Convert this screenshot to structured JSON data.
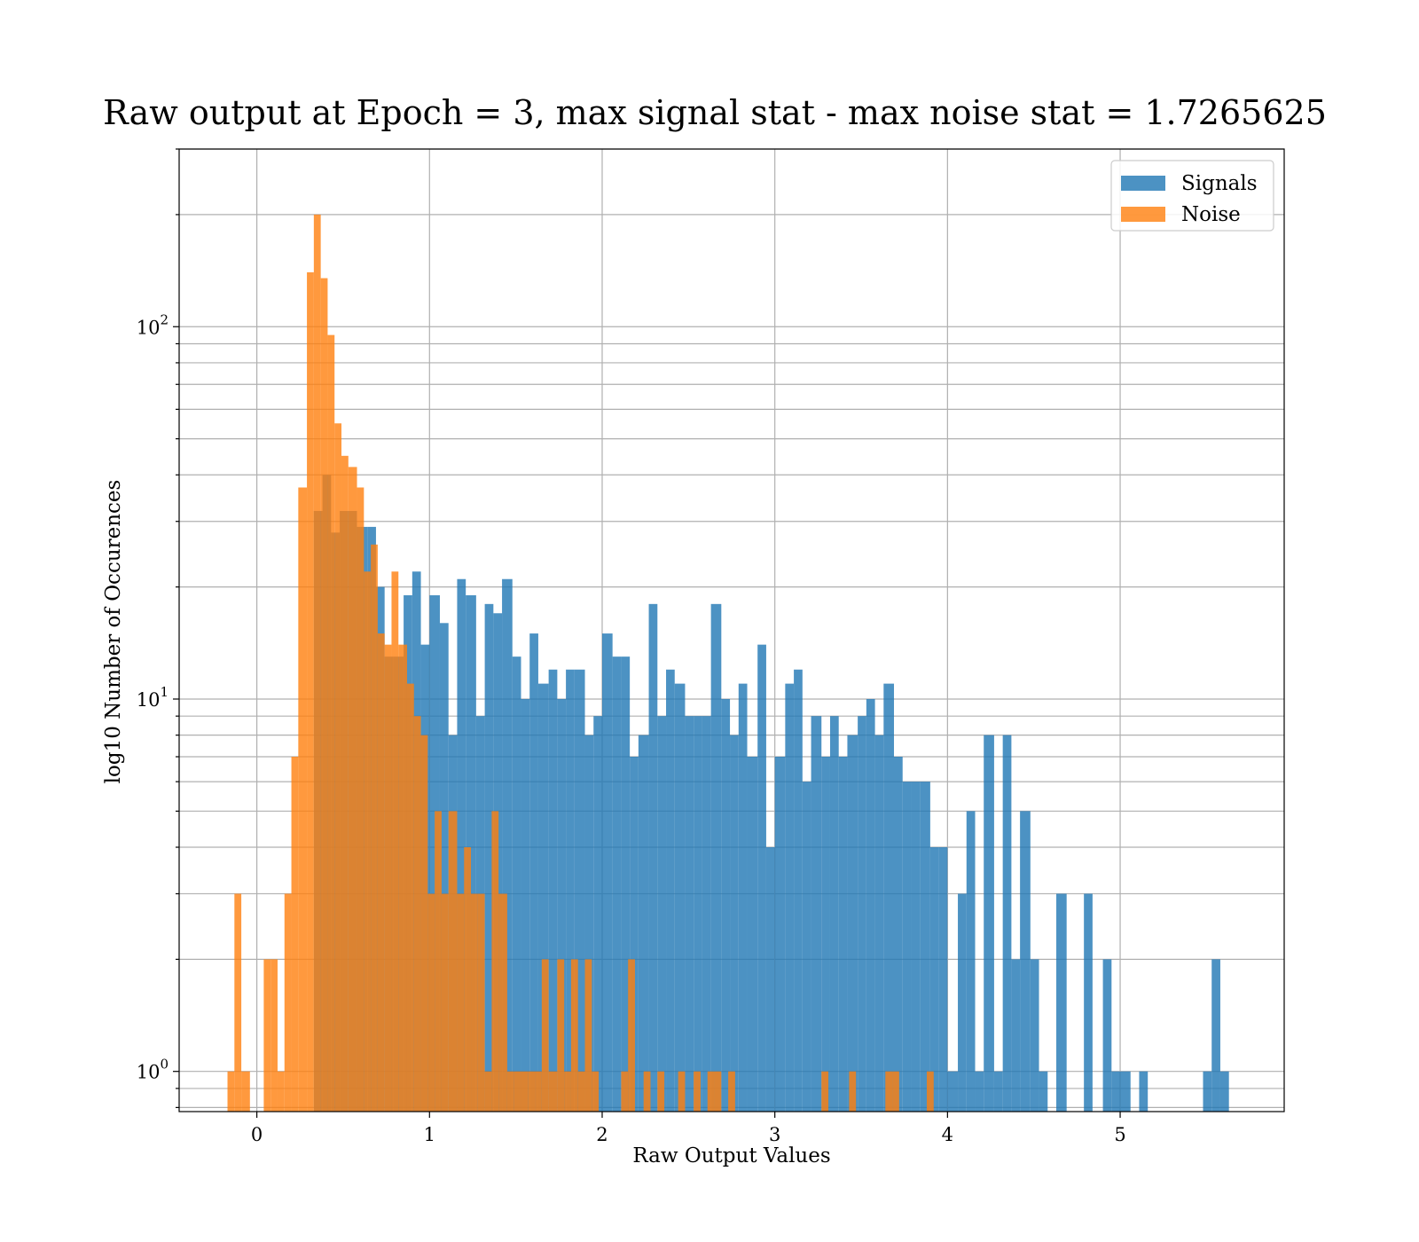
{
  "chart_data": {
    "type": "bar",
    "title": "Raw output at Epoch = 3, max signal stat - max noise stat = 1.7265625",
    "xlabel": "Raw Output Values",
    "ylabel": "log10 Number of Occurences",
    "xlim": [
      -0.45,
      5.95
    ],
    "ylim": [
      0.78,
      300
    ],
    "yscale": "log",
    "x_ticks": [
      {
        "value": 0,
        "label": "0"
      },
      {
        "value": 1,
        "label": "1"
      },
      {
        "value": 2,
        "label": "2"
      },
      {
        "value": 3,
        "label": "3"
      },
      {
        "value": 4,
        "label": "4"
      },
      {
        "value": 5,
        "label": "5"
      }
    ],
    "y_ticks": [
      {
        "value": 1,
        "base": "10",
        "exp": "0"
      },
      {
        "value": 10,
        "base": "10",
        "exp": "1"
      },
      {
        "value": 100,
        "base": "10",
        "exp": "2"
      }
    ],
    "grid": true,
    "legend_position": "top-right",
    "colors": {
      "signals": "#1f77b4",
      "noise": "#ff7f0e",
      "grid": "#b0b0b0"
    },
    "series": [
      {
        "name": "Signals",
        "color": "#1f77b4",
        "bins": [
          [
            0.33,
            0.38,
            32
          ],
          [
            0.38,
            0.43,
            40
          ],
          [
            0.43,
            0.48,
            28
          ],
          [
            0.48,
            0.53,
            32
          ],
          [
            0.53,
            0.58,
            32
          ],
          [
            0.58,
            0.64,
            29
          ],
          [
            0.64,
            0.69,
            29
          ],
          [
            0.69,
            0.74,
            20
          ],
          [
            0.74,
            0.79,
            13
          ],
          [
            0.79,
            0.85,
            13
          ],
          [
            0.85,
            0.9,
            19
          ],
          [
            0.9,
            0.95,
            22
          ],
          [
            0.95,
            1.0,
            14
          ],
          [
            1.0,
            1.06,
            19
          ],
          [
            1.06,
            1.11,
            16
          ],
          [
            1.11,
            1.16,
            8
          ],
          [
            1.16,
            1.21,
            21
          ],
          [
            1.21,
            1.27,
            19
          ],
          [
            1.27,
            1.32,
            9
          ],
          [
            1.32,
            1.37,
            18
          ],
          [
            1.37,
            1.42,
            17
          ],
          [
            1.42,
            1.48,
            21
          ],
          [
            1.48,
            1.53,
            13
          ],
          [
            1.53,
            1.58,
            10
          ],
          [
            1.58,
            1.63,
            15
          ],
          [
            1.63,
            1.69,
            11
          ],
          [
            1.69,
            1.74,
            12
          ],
          [
            1.74,
            1.79,
            10
          ],
          [
            1.79,
            1.84,
            12
          ],
          [
            1.84,
            1.9,
            12
          ],
          [
            1.9,
            1.95,
            8
          ],
          [
            1.95,
            2.0,
            9
          ],
          [
            2.0,
            2.06,
            15
          ],
          [
            2.06,
            2.11,
            13
          ],
          [
            2.11,
            2.16,
            13
          ],
          [
            2.16,
            2.21,
            7
          ],
          [
            2.21,
            2.27,
            8
          ],
          [
            2.27,
            2.32,
            18
          ],
          [
            2.32,
            2.37,
            9
          ],
          [
            2.37,
            2.42,
            12
          ],
          [
            2.42,
            2.48,
            11
          ],
          [
            2.48,
            2.53,
            9
          ],
          [
            2.53,
            2.58,
            9
          ],
          [
            2.58,
            2.63,
            9
          ],
          [
            2.63,
            2.69,
            18
          ],
          [
            2.69,
            2.74,
            10
          ],
          [
            2.74,
            2.79,
            8
          ],
          [
            2.79,
            2.84,
            11
          ],
          [
            2.84,
            2.9,
            7
          ],
          [
            2.9,
            2.95,
            14
          ],
          [
            2.95,
            3.0,
            4
          ],
          [
            3.0,
            3.06,
            7
          ],
          [
            3.06,
            3.11,
            11
          ],
          [
            3.11,
            3.16,
            12
          ],
          [
            3.16,
            3.21,
            6
          ],
          [
            3.21,
            3.27,
            9
          ],
          [
            3.27,
            3.32,
            7
          ],
          [
            3.32,
            3.37,
            9
          ],
          [
            3.37,
            3.42,
            7
          ],
          [
            3.42,
            3.48,
            8
          ],
          [
            3.48,
            3.53,
            9
          ],
          [
            3.53,
            3.58,
            10
          ],
          [
            3.58,
            3.63,
            8
          ],
          [
            3.63,
            3.69,
            11
          ],
          [
            3.69,
            3.74,
            7
          ],
          [
            3.74,
            3.79,
            6
          ],
          [
            3.79,
            3.84,
            6
          ],
          [
            3.84,
            3.9,
            6
          ],
          [
            3.9,
            3.95,
            4
          ],
          [
            3.95,
            4.0,
            4
          ],
          [
            4.0,
            4.06,
            1
          ],
          [
            4.06,
            4.11,
            3
          ],
          [
            4.11,
            4.16,
            5
          ],
          [
            4.16,
            4.21,
            1
          ],
          [
            4.21,
            4.27,
            8
          ],
          [
            4.27,
            4.32,
            1
          ],
          [
            4.32,
            4.37,
            8
          ],
          [
            4.37,
            4.42,
            2
          ],
          [
            4.42,
            4.48,
            5
          ],
          [
            4.48,
            4.53,
            2
          ],
          [
            4.53,
            4.58,
            1
          ],
          [
            4.63,
            4.69,
            3
          ],
          [
            4.79,
            4.84,
            3
          ],
          [
            4.9,
            4.95,
            2
          ],
          [
            4.95,
            5.0,
            1
          ],
          [
            5.0,
            5.06,
            1
          ],
          [
            5.11,
            5.16,
            1
          ],
          [
            5.48,
            5.53,
            1
          ],
          [
            5.53,
            5.58,
            2
          ],
          [
            5.58,
            5.63,
            1
          ]
        ]
      },
      {
        "name": "Noise",
        "color": "#ff7f0e",
        "bins": [
          [
            -0.17,
            -0.13,
            1
          ],
          [
            -0.13,
            -0.09,
            3
          ],
          [
            -0.09,
            -0.04,
            1
          ],
          [
            0.04,
            0.08,
            2
          ],
          [
            0.08,
            0.12,
            2
          ],
          [
            0.12,
            0.16,
            1
          ],
          [
            0.16,
            0.2,
            3
          ],
          [
            0.2,
            0.24,
            7
          ],
          [
            0.24,
            0.29,
            37
          ],
          [
            0.29,
            0.33,
            140
          ],
          [
            0.33,
            0.37,
            200
          ],
          [
            0.37,
            0.41,
            135
          ],
          [
            0.41,
            0.45,
            95
          ],
          [
            0.45,
            0.49,
            55
          ],
          [
            0.49,
            0.53,
            45
          ],
          [
            0.53,
            0.58,
            42
          ],
          [
            0.58,
            0.62,
            37
          ],
          [
            0.62,
            0.66,
            22
          ],
          [
            0.66,
            0.7,
            26
          ],
          [
            0.7,
            0.74,
            15
          ],
          [
            0.74,
            0.78,
            14
          ],
          [
            0.78,
            0.82,
            22
          ],
          [
            0.82,
            0.87,
            14
          ],
          [
            0.87,
            0.91,
            11
          ],
          [
            0.91,
            0.95,
            9
          ],
          [
            0.95,
            0.99,
            8
          ],
          [
            0.99,
            1.03,
            3
          ],
          [
            1.03,
            1.07,
            5
          ],
          [
            1.07,
            1.11,
            3
          ],
          [
            1.11,
            1.16,
            5
          ],
          [
            1.16,
            1.2,
            3
          ],
          [
            1.2,
            1.24,
            4
          ],
          [
            1.24,
            1.28,
            3
          ],
          [
            1.28,
            1.32,
            3
          ],
          [
            1.32,
            1.36,
            1
          ],
          [
            1.36,
            1.4,
            5
          ],
          [
            1.4,
            1.45,
            3
          ],
          [
            1.45,
            1.49,
            1
          ],
          [
            1.49,
            1.53,
            1
          ],
          [
            1.53,
            1.57,
            1
          ],
          [
            1.57,
            1.61,
            1
          ],
          [
            1.61,
            1.65,
            1
          ],
          [
            1.65,
            1.69,
            2
          ],
          [
            1.69,
            1.74,
            1
          ],
          [
            1.74,
            1.78,
            2
          ],
          [
            1.78,
            1.82,
            1
          ],
          [
            1.82,
            1.86,
            2
          ],
          [
            1.86,
            1.9,
            1
          ],
          [
            1.9,
            1.94,
            2
          ],
          [
            1.94,
            1.98,
            1
          ],
          [
            2.11,
            2.15,
            1
          ],
          [
            2.15,
            2.19,
            2
          ],
          [
            2.24,
            2.28,
            1
          ],
          [
            2.32,
            2.36,
            1
          ],
          [
            2.44,
            2.48,
            1
          ],
          [
            2.53,
            2.57,
            1
          ],
          [
            2.61,
            2.65,
            1
          ],
          [
            2.65,
            2.69,
            1
          ],
          [
            2.73,
            2.77,
            1
          ],
          [
            3.27,
            3.31,
            1
          ],
          [
            3.43,
            3.47,
            1
          ],
          [
            3.64,
            3.68,
            1
          ],
          [
            3.68,
            3.72,
            1
          ],
          [
            3.88,
            3.92,
            1
          ]
        ]
      }
    ]
  }
}
